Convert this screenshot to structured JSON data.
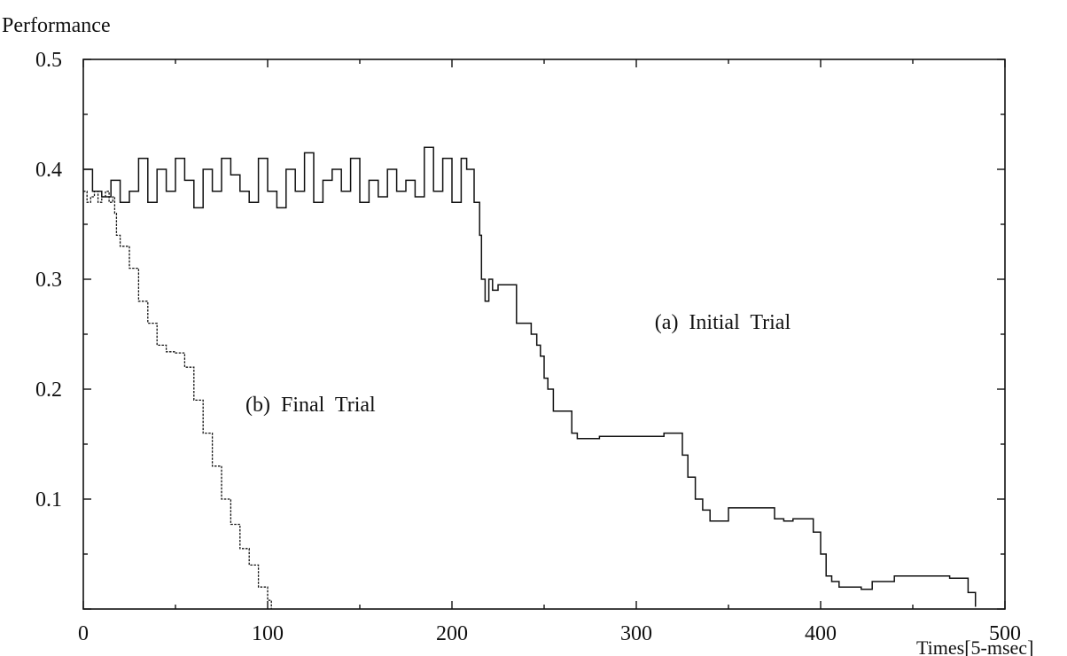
{
  "chart_data": {
    "type": "line",
    "ylabel": "Performance",
    "xlabel": "Times[5-msec]",
    "xlim": [
      0,
      500
    ],
    "ylim": [
      0,
      0.5
    ],
    "x_ticks": [
      "0",
      "100",
      "200",
      "300",
      "400",
      "500"
    ],
    "y_ticks": [
      "0.1",
      "0.2",
      "0.3",
      "0.4",
      "0.5"
    ],
    "grid": false,
    "series": [
      {
        "name": "(a) Initial Trial",
        "x": [
          0,
          5,
          10,
          15,
          20,
          25,
          30,
          35,
          40,
          45,
          50,
          55,
          60,
          65,
          70,
          75,
          80,
          85,
          90,
          95,
          100,
          105,
          110,
          115,
          120,
          125,
          130,
          135,
          140,
          145,
          150,
          155,
          160,
          165,
          170,
          175,
          180,
          185,
          190,
          195,
          200,
          205,
          208,
          212,
          215,
          216,
          218,
          220,
          222,
          225,
          230,
          235,
          240,
          243,
          246,
          248,
          250,
          252,
          255,
          260,
          265,
          268,
          280,
          300,
          310,
          315,
          320,
          325,
          328,
          332,
          336,
          340,
          345,
          350,
          360,
          370,
          375,
          380,
          385,
          390,
          396,
          400,
          403,
          406,
          410,
          415,
          422,
          428,
          440,
          450,
          460,
          470,
          475,
          480,
          484
        ],
        "y": [
          0.4,
          0.38,
          0.375,
          0.39,
          0.37,
          0.38,
          0.41,
          0.37,
          0.4,
          0.38,
          0.41,
          0.39,
          0.365,
          0.4,
          0.38,
          0.41,
          0.395,
          0.38,
          0.37,
          0.41,
          0.38,
          0.365,
          0.4,
          0.38,
          0.415,
          0.37,
          0.39,
          0.4,
          0.38,
          0.41,
          0.37,
          0.39,
          0.375,
          0.4,
          0.38,
          0.39,
          0.375,
          0.42,
          0.38,
          0.41,
          0.37,
          0.41,
          0.4,
          0.37,
          0.34,
          0.3,
          0.28,
          0.3,
          0.29,
          0.295,
          0.295,
          0.26,
          0.26,
          0.25,
          0.24,
          0.23,
          0.21,
          0.2,
          0.18,
          0.18,
          0.16,
          0.155,
          0.157,
          0.157,
          0.157,
          0.16,
          0.16,
          0.14,
          0.12,
          0.1,
          0.09,
          0.08,
          0.08,
          0.092,
          0.092,
          0.092,
          0.082,
          0.08,
          0.082,
          0.082,
          0.07,
          0.05,
          0.03,
          0.025,
          0.02,
          0.02,
          0.018,
          0.025,
          0.03,
          0.03,
          0.03,
          0.028,
          0.028,
          0.015,
          0.002
        ]
      },
      {
        "name": "(b) Final Trial",
        "x": [
          0,
          2,
          4,
          6,
          8,
          10,
          12,
          14,
          16,
          17,
          18,
          20,
          25,
          30,
          35,
          40,
          45,
          50,
          55,
          60,
          65,
          70,
          75,
          80,
          85,
          90,
          95,
          100,
          102
        ],
        "y": [
          0.38,
          0.37,
          0.375,
          0.38,
          0.37,
          0.375,
          0.38,
          0.37,
          0.375,
          0.36,
          0.34,
          0.33,
          0.31,
          0.28,
          0.26,
          0.24,
          0.234,
          0.233,
          0.22,
          0.19,
          0.16,
          0.13,
          0.1,
          0.077,
          0.055,
          0.04,
          0.02,
          0.008,
          0.0
        ]
      }
    ],
    "annotations": [
      {
        "text": "(a)  Initial  Trial",
        "x": 310,
        "y": 0.255
      },
      {
        "text": "(b)  Final  Trial",
        "x": 88,
        "y": 0.18
      }
    ]
  }
}
